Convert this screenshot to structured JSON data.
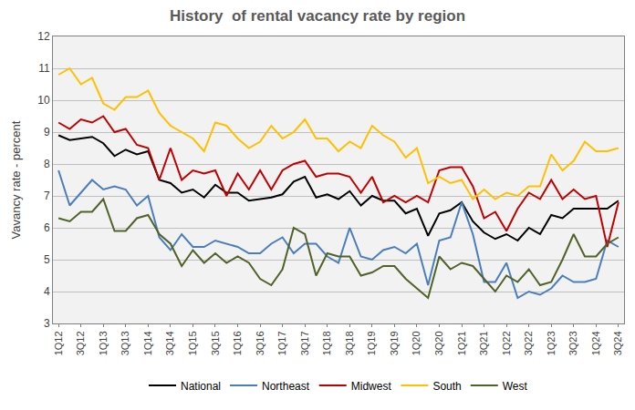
{
  "chart_data": {
    "type": "line",
    "title": "History  of rental vacancy rate by region",
    "y_label": "Vavancy rate - percent",
    "categories": [
      "1Q12",
      null,
      "3Q12",
      null,
      "1Q13",
      null,
      "3Q13",
      null,
      "1Q14",
      null,
      "3Q14",
      null,
      "1Q15",
      null,
      "3Q15",
      null,
      "1Q16",
      null,
      "3Q16",
      null,
      "1Q17",
      null,
      "3Q17",
      null,
      "1Q18",
      null,
      "3Q18",
      null,
      "1Q19",
      null,
      "3Q19",
      null,
      "1Q20",
      null,
      "3Q20",
      null,
      "1Q21",
      null,
      "3Q21",
      null,
      "1Q22",
      null,
      "3Q22",
      null,
      "1Q23",
      null,
      "3Q23",
      null,
      "1Q24",
      null,
      "3Q24"
    ],
    "series": [
      {
        "name": "National",
        "color": "#000000",
        "values": [
          8.9,
          8.75,
          8.8,
          8.85,
          8.65,
          8.25,
          8.45,
          8.3,
          8.4,
          7.5,
          7.4,
          7.1,
          7.2,
          6.95,
          7.35,
          7.1,
          7.1,
          6.85,
          6.9,
          6.95,
          7.05,
          7.45,
          7.6,
          6.95,
          7.05,
          6.9,
          7.15,
          6.7,
          7.0,
          6.85,
          6.85,
          6.45,
          6.6,
          5.75,
          6.45,
          6.55,
          6.8,
          6.2,
          5.85,
          5.65,
          5.8,
          5.6,
          6.0,
          5.8,
          6.4,
          6.3,
          6.6,
          6.6,
          6.6,
          6.6,
          6.85
        ]
      },
      {
        "name": "Northeast",
        "color": "#4a7ebb",
        "values": [
          7.8,
          6.7,
          7.1,
          7.5,
          7.2,
          7.3,
          7.2,
          6.7,
          7.0,
          5.7,
          5.3,
          5.8,
          5.4,
          5.4,
          5.6,
          5.5,
          5.4,
          5.2,
          5.2,
          5.5,
          5.7,
          5.2,
          5.5,
          5.5,
          5.1,
          4.9,
          6.0,
          5.1,
          5.0,
          5.3,
          5.4,
          5.2,
          5.5,
          4.2,
          5.6,
          5.7,
          6.8,
          5.8,
          4.3,
          4.3,
          4.9,
          3.8,
          4.0,
          3.9,
          4.1,
          4.5,
          4.3,
          4.3,
          4.4,
          5.6,
          5.4
        ]
      },
      {
        "name": "Midwest",
        "color": "#c00000",
        "values": [
          9.3,
          9.1,
          9.4,
          9.3,
          9.5,
          9.0,
          9.1,
          8.6,
          8.5,
          7.5,
          8.5,
          7.5,
          7.8,
          7.7,
          7.8,
          7.0,
          7.7,
          7.2,
          7.8,
          7.2,
          7.8,
          8.0,
          8.1,
          7.6,
          7.7,
          7.7,
          7.6,
          7.1,
          7.6,
          6.8,
          7.0,
          6.8,
          7.0,
          6.8,
          7.8,
          7.9,
          7.9,
          7.3,
          6.3,
          6.5,
          5.9,
          6.6,
          7.1,
          6.9,
          7.5,
          6.9,
          7.2,
          6.9,
          7.0,
          5.4,
          6.8
        ]
      },
      {
        "name": "South",
        "color": "#ffc000",
        "values": [
          10.8,
          11.0,
          10.5,
          10.7,
          9.9,
          9.7,
          10.1,
          10.1,
          10.3,
          9.6,
          9.2,
          9.0,
          8.8,
          8.4,
          9.3,
          9.2,
          8.8,
          8.5,
          8.7,
          9.2,
          8.8,
          9.0,
          9.4,
          8.8,
          8.8,
          8.4,
          8.7,
          8.5,
          9.2,
          8.9,
          8.7,
          8.2,
          8.5,
          7.4,
          7.6,
          7.4,
          7.5,
          6.9,
          7.2,
          6.9,
          7.1,
          7.0,
          7.3,
          7.3,
          8.3,
          7.8,
          8.1,
          8.7,
          8.4,
          8.4,
          8.5
        ]
      },
      {
        "name": "West",
        "color": "#4f6228",
        "values": [
          6.3,
          6.2,
          6.5,
          6.5,
          6.9,
          5.9,
          5.9,
          6.3,
          6.4,
          5.8,
          5.5,
          4.8,
          5.3,
          4.9,
          5.2,
          4.9,
          5.1,
          4.9,
          4.4,
          4.2,
          4.7,
          6.0,
          5.8,
          4.5,
          5.2,
          5.1,
          5.1,
          4.5,
          4.6,
          4.8,
          4.8,
          4.4,
          4.1,
          3.8,
          5.1,
          4.7,
          4.9,
          4.8,
          4.4,
          4.0,
          4.5,
          4.3,
          4.7,
          4.2,
          4.3,
          5.0,
          5.8,
          5.1,
          5.1,
          5.5,
          5.7
        ]
      }
    ],
    "ylim": [
      3,
      12
    ],
    "yticks": [
      3,
      4,
      5,
      6,
      7,
      8,
      9,
      10,
      11,
      12
    ],
    "grid": true,
    "legend": "bottom"
  }
}
